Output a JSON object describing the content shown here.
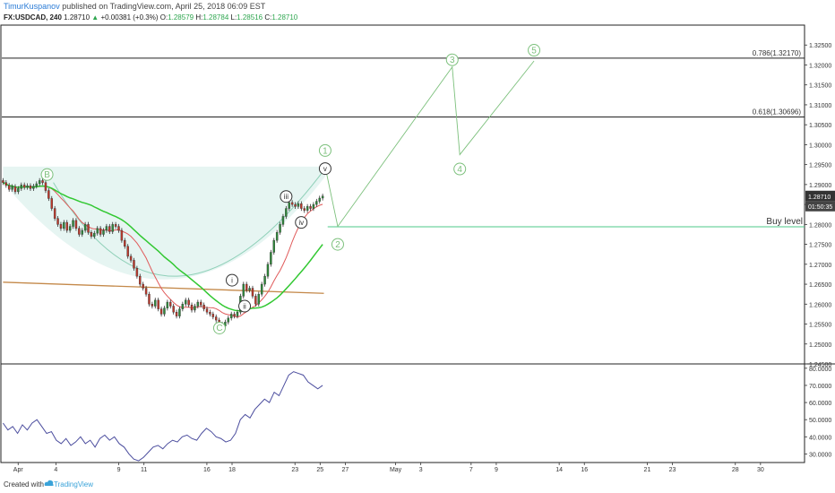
{
  "header": {
    "author": "TimurKuspanov",
    "published": "published on TradingView.com, April 25, 2018 06:09 EST",
    "symbol": "FX:USDCAD, 240",
    "last": "1.28710",
    "change_arrow": "▲",
    "change": "+0.00381 (+0.3%)",
    "o_label": "O:",
    "o": "1.28579",
    "h_label": "H:",
    "h": "1.28784",
    "l_label": "L:",
    "l": "1.28516",
    "c_label": "C:",
    "c": "1.28710"
  },
  "footer": {
    "created": "Created with",
    "brand": "TradingView"
  },
  "price_badge": {
    "value": "1.28710",
    "countdown": "01:50:35"
  },
  "colors": {
    "candle_up": "#2e8b3a",
    "candle_down": "#c0392b",
    "ma_red": "#e05a5a",
    "ma_green": "#32c832",
    "trend_brown": "#c4894a",
    "wave_green": "#7cc07c",
    "fill_cyan": "#e6f5f2",
    "rsi": "#4b4d9e"
  },
  "chart_data": [
    {
      "type": "candlestick",
      "series_name": "FX:USDCAD, 240",
      "ylim": [
        1.245,
        1.33
      ],
      "y_ticks": [
        "1.32500",
        "1.32000",
        "1.31500",
        "1.31000",
        "1.30500",
        "1.30000",
        "1.29500",
        "1.29000",
        "1.28500",
        "1.28000",
        "1.27500",
        "1.27000",
        "1.26500",
        "1.26000",
        "1.25500",
        "1.25000",
        "1.24500"
      ],
      "x_ticks": [
        {
          "label": "Apr",
          "day": 0
        },
        {
          "label": "4",
          "day": 3
        },
        {
          "label": "9",
          "day": 8
        },
        {
          "label": "11",
          "day": 10
        },
        {
          "label": "16",
          "day": 15
        },
        {
          "label": "18",
          "day": 17
        },
        {
          "label": "23",
          "day": 22
        },
        {
          "label": "25",
          "day": 24
        },
        {
          "label": "27",
          "day": 26
        },
        {
          "label": "May",
          "day": 30
        },
        {
          "label": "3",
          "day": 32
        },
        {
          "label": "7",
          "day": 36
        },
        {
          "label": "9",
          "day": 38
        },
        {
          "label": "14",
          "day": 43
        },
        {
          "label": "16",
          "day": 45
        },
        {
          "label": "21",
          "day": 50
        },
        {
          "label": "23",
          "day": 52
        },
        {
          "label": "28",
          "day": 57
        },
        {
          "label": "30",
          "day": 59
        }
      ],
      "closes": [
        1.2905,
        1.2898,
        1.2888,
        1.2895,
        1.2882,
        1.289,
        1.2899,
        1.2893,
        1.2897,
        1.289,
        1.2896,
        1.2902,
        1.291,
        1.2905,
        1.2885,
        1.2865,
        1.284,
        1.2815,
        1.28,
        1.279,
        1.2805,
        1.2785,
        1.2795,
        1.281,
        1.279,
        1.2775,
        1.2785,
        1.28,
        1.278,
        1.277,
        1.2778,
        1.279,
        1.2775,
        1.2785,
        1.2795,
        1.2782,
        1.28,
        1.2795,
        1.2785,
        1.276,
        1.2745,
        1.272,
        1.271,
        1.269,
        1.267,
        1.265,
        1.264,
        1.2625,
        1.26,
        1.2595,
        1.261,
        1.2588,
        1.2575,
        1.259,
        1.2605,
        1.2595,
        1.258,
        1.257,
        1.2588,
        1.26,
        1.261,
        1.2598,
        1.2585,
        1.2595,
        1.2605,
        1.2598,
        1.2588,
        1.258,
        1.2575,
        1.2568,
        1.256,
        1.255,
        1.2545,
        1.2555,
        1.2565,
        1.2575,
        1.257,
        1.258,
        1.262,
        1.265,
        1.2635,
        1.264,
        1.262,
        1.26,
        1.2625,
        1.265,
        1.267,
        1.27,
        1.273,
        1.276,
        1.278,
        1.28,
        1.282,
        1.284,
        1.2855,
        1.285,
        1.2845,
        1.2852,
        1.284,
        1.2835,
        1.2845,
        1.284,
        1.285,
        1.2858,
        1.2866,
        1.2871
      ],
      "moving_average_red": "20-period",
      "moving_average_green": "50-period",
      "horizontal_levels": [
        {
          "label": "0.786(1.32170)",
          "value": 1.3217
        },
        {
          "label": "0.618(1.30696)",
          "value": 1.30696
        },
        {
          "label": "Buy level",
          "value": 1.2794
        }
      ],
      "wave_labels_projection": [
        {
          "label": "1",
          "day": 24.3,
          "value": 1.296
        },
        {
          "label": "2",
          "day": 24.9,
          "value": 1.279
        },
        {
          "label": "3",
          "day": 34.5,
          "value": 1.322
        },
        {
          "label": "4",
          "day": 35.0,
          "value": 1.296
        },
        {
          "label": "5",
          "day": 41.0,
          "value": 1.323
        }
      ],
      "wave_labels_history": [
        {
          "label": "B",
          "day": 2.3,
          "value": 1.2925
        },
        {
          "label": "C",
          "day": 16.0,
          "value": 1.254
        },
        {
          "label": "i",
          "day": 17.0,
          "value": 1.266
        },
        {
          "label": "ii",
          "day": 18.0,
          "value": 1.2595
        },
        {
          "label": "iii",
          "day": 21.3,
          "value": 1.287
        },
        {
          "label": "iv",
          "day": 22.5,
          "value": 1.2805
        },
        {
          "label": "v",
          "day": 24.4,
          "value": 1.294
        }
      ]
    },
    {
      "type": "line",
      "series_name": "RSI",
      "ylim": [
        25,
        82
      ],
      "y_ticks": [
        "80.0000",
        "70.0000",
        "60.0000",
        "50.0000",
        "40.0000",
        "30.0000"
      ],
      "values": [
        48,
        44,
        46,
        42,
        47,
        44,
        48,
        50,
        46,
        42,
        43,
        38,
        36,
        39,
        35,
        37,
        40,
        36,
        38,
        34,
        39,
        41,
        38,
        40,
        36,
        34,
        30,
        27,
        26,
        28,
        31,
        34,
        35,
        33,
        36,
        38,
        37,
        40,
        41,
        39,
        38,
        42,
        45,
        43,
        40,
        39,
        37,
        38,
        42,
        50,
        53,
        51,
        56,
        59,
        62,
        60,
        66,
        64,
        70,
        76,
        78,
        77,
        76,
        72,
        70,
        68,
        70
      ]
    }
  ]
}
